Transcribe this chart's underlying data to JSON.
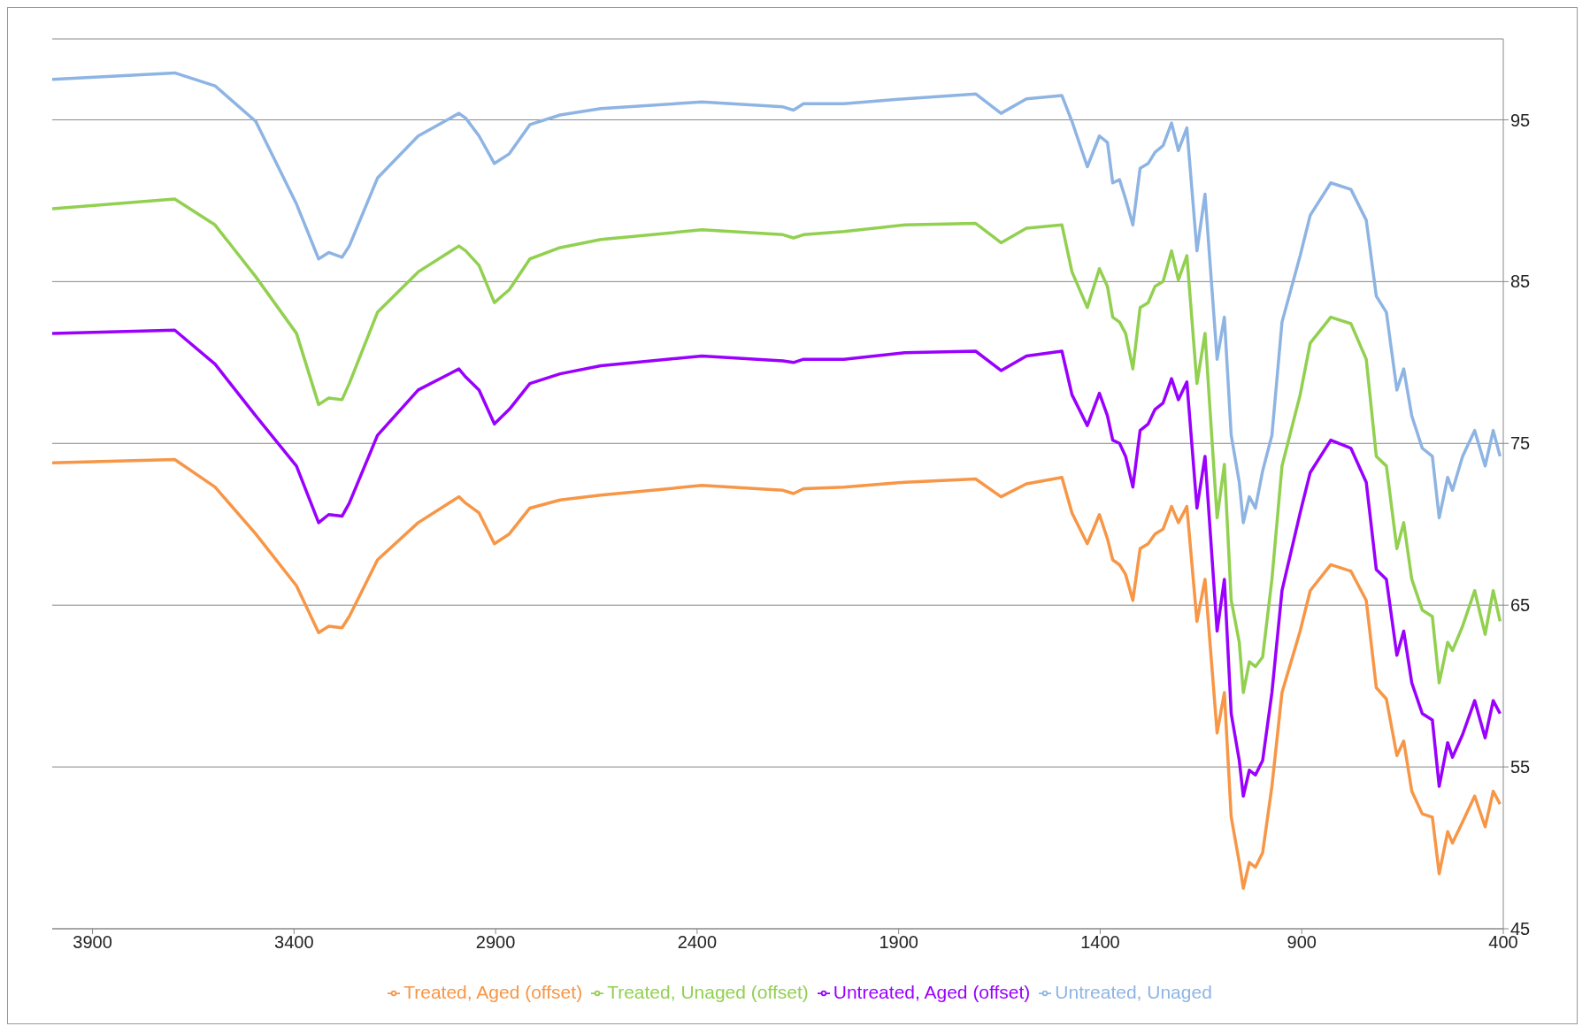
{
  "chart_data": {
    "type": "line",
    "x": [
      4000,
      3696,
      3596,
      3495,
      3394,
      3339,
      3314,
      3281,
      3263,
      3193,
      3092,
      2991,
      2974,
      2941,
      2903,
      2866,
      2815,
      2740,
      2639,
      2388,
      2187,
      2161,
      2136,
      2036,
      1885,
      1709,
      1646,
      1583,
      1495,
      1470,
      1432,
      1402,
      1382,
      1369,
      1352,
      1337,
      1319,
      1301,
      1281,
      1264,
      1244,
      1223,
      1206,
      1185,
      1160,
      1140,
      1110,
      1092,
      1075,
      1055,
      1045,
      1030,
      1015,
      997,
      974,
      949,
      904,
      879,
      828,
      778,
      740,
      715,
      690,
      664,
      647,
      627,
      601,
      576,
      559,
      538,
      526,
      501,
      471,
      445,
      425,
      408
    ],
    "series": [
      {
        "name": "Untreated, Unaged",
        "color": "#8eb4e3",
        "values": [
          97.5,
          97.9,
          97.1,
          94.9,
          89.8,
          86.4,
          86.8,
          86.5,
          87.2,
          91.4,
          94.0,
          95.4,
          95.1,
          94.0,
          92.3,
          92.9,
          94.7,
          95.3,
          95.7,
          96.1,
          95.8,
          95.6,
          96.0,
          96.0,
          96.3,
          96.6,
          95.4,
          96.3,
          96.5,
          94.9,
          92.1,
          94.0,
          93.6,
          91.1,
          91.3,
          90.1,
          88.5,
          92.0,
          92.3,
          93.0,
          93.4,
          94.8,
          93.1,
          94.5,
          86.9,
          90.4,
          80.2,
          82.8,
          75.5,
          72.6,
          70.1,
          71.7,
          71.0,
          73.3,
          75.5,
          82.5,
          86.6,
          89.1,
          91.1,
          90.7,
          88.8,
          84.1,
          83.1,
          78.3,
          79.6,
          76.7,
          74.7,
          74.2,
          70.4,
          72.9,
          72.1,
          74.2,
          75.8,
          73.6,
          75.8,
          74.2
        ]
      },
      {
        "name": "Treated, Unaged (offset)",
        "color": "#92d050",
        "values": [
          89.5,
          90.1,
          88.5,
          85.3,
          81.8,
          77.4,
          77.8,
          77.7,
          78.7,
          83.1,
          85.6,
          87.2,
          86.9,
          86.0,
          83.7,
          84.5,
          86.4,
          87.1,
          87.6,
          88.2,
          87.9,
          87.7,
          87.9,
          88.1,
          88.5,
          88.6,
          87.4,
          88.3,
          88.5,
          85.6,
          83.4,
          85.8,
          84.7,
          82.8,
          82.5,
          81.8,
          79.6,
          83.4,
          83.7,
          84.7,
          85.0,
          86.9,
          85.1,
          86.6,
          78.7,
          81.8,
          70.4,
          73.7,
          65.3,
          62.7,
          59.6,
          61.5,
          61.2,
          61.8,
          66.6,
          73.6,
          78.0,
          81.2,
          82.8,
          82.4,
          80.2,
          74.2,
          73.6,
          68.5,
          70.1,
          66.6,
          64.7,
          64.3,
          60.2,
          62.7,
          62.2,
          63.7,
          65.9,
          63.2,
          65.9,
          64.0
        ]
      },
      {
        "name": "Untreated, Aged (offset)",
        "color": "#9900ff",
        "values": [
          81.8,
          82.0,
          79.9,
          76.7,
          73.6,
          70.1,
          70.6,
          70.5,
          71.3,
          75.5,
          78.3,
          79.6,
          79.1,
          78.3,
          76.2,
          77.1,
          78.7,
          79.3,
          79.8,
          80.4,
          80.1,
          80.0,
          80.2,
          80.2,
          80.6,
          80.7,
          79.5,
          80.4,
          80.7,
          78.0,
          76.1,
          78.1,
          76.7,
          75.2,
          75.0,
          74.2,
          72.3,
          75.8,
          76.2,
          77.1,
          77.5,
          79.0,
          77.7,
          78.8,
          71.0,
          74.2,
          63.4,
          66.6,
          58.3,
          55.4,
          53.2,
          54.8,
          54.5,
          55.4,
          59.6,
          65.9,
          70.7,
          73.2,
          75.2,
          74.7,
          72.6,
          67.2,
          66.6,
          61.9,
          63.4,
          60.2,
          58.3,
          57.9,
          53.8,
          56.5,
          55.6,
          57.0,
          59.1,
          56.8,
          59.1,
          58.3
        ]
      },
      {
        "name": "Treated, Aged (offset)",
        "color": "#f79646",
        "values": [
          73.8,
          74.0,
          72.3,
          69.4,
          66.2,
          63.3,
          63.7,
          63.6,
          64.3,
          67.8,
          70.1,
          71.7,
          71.3,
          70.7,
          68.8,
          69.4,
          71.0,
          71.5,
          71.8,
          72.4,
          72.1,
          71.9,
          72.2,
          72.3,
          72.6,
          72.8,
          71.7,
          72.5,
          72.9,
          70.7,
          68.8,
          70.6,
          69.1,
          67.8,
          67.5,
          66.9,
          65.3,
          68.5,
          68.8,
          69.4,
          69.7,
          71.1,
          70.1,
          71.1,
          64.0,
          66.6,
          57.1,
          59.6,
          51.9,
          49.1,
          47.5,
          49.1,
          48.8,
          49.7,
          53.8,
          59.6,
          63.4,
          65.9,
          67.5,
          67.1,
          65.3,
          59.9,
          59.2,
          55.7,
          56.6,
          53.5,
          52.1,
          51.9,
          48.4,
          51.0,
          50.3,
          51.6,
          53.2,
          51.3,
          53.5,
          52.7
        ]
      }
    ],
    "xlim": [
      4000,
      400
    ],
    "xticks": [
      3900,
      3400,
      2900,
      2400,
      1900,
      1400,
      900,
      400
    ],
    "ylim": [
      45,
      100
    ],
    "yticks": [
      45,
      55,
      65,
      75,
      85,
      95
    ],
    "grid": "y",
    "legend": "bottom",
    "marker": "none",
    "line_style": "solid"
  }
}
